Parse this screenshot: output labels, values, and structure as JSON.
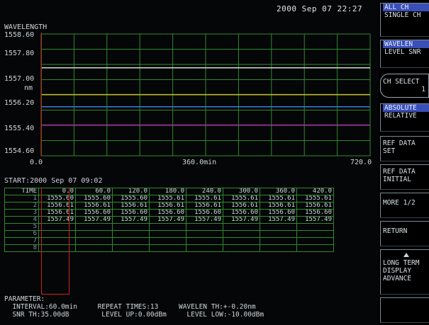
{
  "header": {
    "datetime": "2000 Sep 07 22:27"
  },
  "graph": {
    "title": "WAVELENGTH",
    "y_labels": [
      "1558.60",
      "1557.80",
      "1557.00",
      "nm",
      "1556.20",
      "1555.40",
      "1554.60"
    ],
    "x_labels": [
      "0.0",
      "360.0min",
      "720.0"
    ],
    "traces": [
      {
        "wavelength_nm": 1556.21,
        "color": "#3b7be0"
      },
      {
        "wavelength_nm": 1556.61,
        "color": "#c8c020"
      },
      {
        "wavelength_nm": 1557.49,
        "color": "#d9d9d0"
      },
      {
        "wavelength_nm": 1555.61,
        "color": "#b030a8"
      }
    ]
  },
  "table": {
    "start": "START:2000 Sep 07 09:02",
    "headers": [
      "TIME",
      "0.0",
      "60.0",
      "120.0",
      "180.0",
      "240.0",
      "300.0",
      "360.0",
      "420.0"
    ],
    "rows": [
      [
        "1",
        "1555.60",
        "1555.60",
        "1555.60",
        "1555.61",
        "1555.61",
        "1555.61",
        "1555.61",
        "1555.61"
      ],
      [
        "2",
        "1556.61",
        "1556.61",
        "1556.61",
        "1556.61",
        "1556.61",
        "1556.61",
        "1556.61",
        "1556.61"
      ],
      [
        "3",
        "1556.61",
        "1556.60",
        "1556.60",
        "1556.60",
        "1556.60",
        "1556.60",
        "1556.60",
        "1556.60"
      ],
      [
        "4",
        "1557.49",
        "1557.49",
        "1557.49",
        "1557.49",
        "1557.49",
        "1557.49",
        "1557.49",
        "1557.49"
      ],
      [
        "5",
        "",
        "",
        "",
        "",
        "",
        "",
        "",
        ""
      ],
      [
        "6",
        "",
        "",
        "",
        "",
        "",
        "",
        "",
        ""
      ],
      [
        "7",
        "",
        "",
        "",
        "",
        "",
        "",
        "",
        ""
      ],
      [
        "8",
        "",
        "",
        "",
        "",
        "",
        "",
        "",
        ""
      ]
    ]
  },
  "parameters": {
    "title": "PARAMETER:",
    "interval": "INTERVAL:60.0min",
    "repeat": "REPEAT TIMES:13",
    "wavelen_th": "WAVELEN TH:+-0.20nm",
    "snr_th": "SNR TH:35.00dB",
    "level_up": "LEVEL UP:0.00dBm",
    "level_low": "LEVEL LOW:-10.00dBm"
  },
  "softkeys": {
    "all_ch": "ALL CH",
    "single_ch": "SINGLE CH",
    "wavelen": "WAVELEN",
    "level_snr": "LEVEL SNR",
    "ch_select": "CH SELECT",
    "ch_select_value": "1",
    "absolute": "ABSOLUTE",
    "relative": "RELATIVE",
    "ref_data_set_1": "REF DATA",
    "ref_data_set_2": "SET",
    "ref_data_init_1": "REF DATA",
    "ref_data_init_2": "INITIAL",
    "more": "MORE 1/2",
    "return": "RETURN",
    "long_term_1": "LONG TERM",
    "long_term_2": "DISPLAY",
    "long_term_3": "ADVANCE"
  },
  "colors": {
    "grid": "#2f8a2c",
    "cursor": "#d02020",
    "highlight": "#3a4fb8"
  }
}
